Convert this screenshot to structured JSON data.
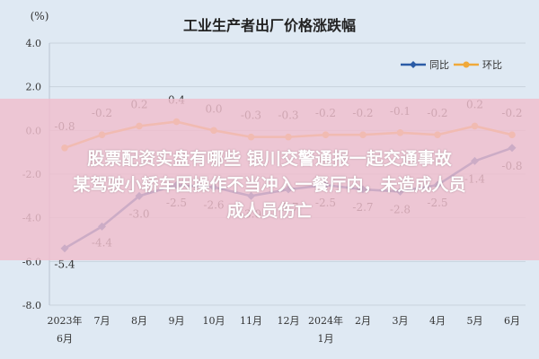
{
  "chart_data": {
    "type": "line",
    "title": "工业生产者出厂价格涨跌幅",
    "y_unit": "(%)",
    "ylim": [
      -8.0,
      4.0
    ],
    "yticks": [
      "4.0",
      "2.0",
      "0.0",
      "-2.0",
      "-4.0",
      "-6.0",
      "-8.0"
    ],
    "grid": true,
    "legend_position": "top-right",
    "categories": [
      {
        "line1": "2023年",
        "line2": "6月"
      },
      {
        "line1": "7月",
        "line2": ""
      },
      {
        "line1": "8月",
        "line2": ""
      },
      {
        "line1": "9月",
        "line2": ""
      },
      {
        "line1": "10月",
        "line2": ""
      },
      {
        "line1": "11月",
        "line2": ""
      },
      {
        "line1": "12月",
        "line2": ""
      },
      {
        "line1": "2024年",
        "line2": "1月"
      },
      {
        "line1": "2月",
        "line2": ""
      },
      {
        "line1": "3月",
        "line2": ""
      },
      {
        "line1": "4月",
        "line2": ""
      },
      {
        "line1": "5月",
        "line2": ""
      },
      {
        "line1": "6月",
        "line2": ""
      }
    ],
    "series": [
      {
        "name": "同比",
        "color": "#2b5ca6",
        "values": [
          -5.4,
          -4.4,
          -3.0,
          -2.5,
          -2.6,
          -3.0,
          -2.7,
          -2.5,
          -2.7,
          -2.8,
          -2.5,
          -1.4,
          -0.8
        ],
        "labels": [
          "-5.4",
          "-4.4",
          "-3.0",
          "-2.5",
          "-2.6",
          "-3.0",
          "-2.7",
          "-2.5",
          "-2.7",
          "-2.8",
          "-2.5",
          "-1.4",
          "-0.8"
        ]
      },
      {
        "name": "环比",
        "color": "#f0a93a",
        "values": [
          -0.8,
          -0.2,
          0.2,
          0.4,
          0.0,
          -0.3,
          -0.3,
          -0.2,
          -0.2,
          -0.1,
          -0.2,
          0.2,
          -0.2
        ],
        "labels": [
          "-0.8",
          "-0.2",
          "0.2",
          "0.4",
          "0.0",
          "-0.3",
          "-0.3",
          "-0.2",
          "-0.2",
          "-0.1",
          "-0.2",
          "0.2",
          "-0.2"
        ]
      }
    ]
  },
  "overlay": {
    "line1": "股票配资实盘有哪些 银川交警通报一起交通事故",
    "line2": "某驾驶小轿车因操作不当冲入一餐厅内，未造成人员",
    "line3": "成人员伤亡",
    "color": "#f0bccb"
  }
}
